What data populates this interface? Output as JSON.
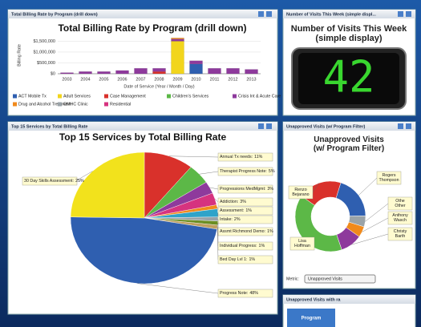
{
  "panels": [
    {
      "header": "Total Billing Rate by Program (drill down)"
    },
    {
      "header": "Number of Visits This Week (simple displ..."
    },
    {
      "header": "Top 15 Services by Total Billing Rate"
    },
    {
      "header": "Unapproved Visits (w/ Program Filter)"
    },
    {
      "header": "Unapproved Visits with ra"
    }
  ],
  "chart_data": [
    {
      "type": "bar",
      "title": "Total Billing Rate by Program (drill down)",
      "x_label": "Date of Service (Year / Month / Day)",
      "y_label": "Billing Rate",
      "categories": [
        "2003",
        "2004",
        "2005",
        "2006",
        "2007",
        "2008",
        "2009",
        "2010",
        "2011",
        "2012",
        "2013"
      ],
      "stacked": true,
      "series": [
        {
          "name": "ACT Mobile Tx",
          "color": "#2f5fb0",
          "values": [
            0,
            0,
            0,
            0,
            0,
            0,
            0,
            450000,
            0,
            0,
            0
          ]
        },
        {
          "name": "Adult Services",
          "color": "#f2d51c",
          "values": [
            0,
            0,
            0,
            0,
            0,
            0,
            1500000,
            0,
            0,
            0,
            0
          ]
        },
        {
          "name": "Case Management",
          "color": "#d9312b",
          "values": [
            0,
            0,
            0,
            0,
            0,
            100000,
            0,
            0,
            0,
            0,
            0
          ]
        },
        {
          "name": "Children's Services",
          "color": "#5cb847",
          "values": [
            0,
            0,
            0,
            0,
            0,
            0,
            0,
            0,
            0,
            0,
            0
          ]
        },
        {
          "name": "Crisis Int & Acute Care",
          "color": "#8e3a9c",
          "values": [
            50000,
            100000,
            100000,
            150000,
            250000,
            150000,
            100000,
            150000,
            250000,
            250000,
            200000
          ]
        },
        {
          "name": "Drug and Alcohol Treatment",
          "color": "#f08a1c",
          "values": [
            0,
            0,
            0,
            0,
            0,
            0,
            50000,
            0,
            0,
            0,
            0
          ]
        },
        {
          "name": "OMHC Clinic",
          "color": "#9aa3a8",
          "values": [
            0,
            0,
            0,
            0,
            0,
            0,
            0,
            0,
            0,
            0,
            0
          ]
        },
        {
          "name": "Residential",
          "color": "#d6337f",
          "values": [
            0,
            0,
            0,
            0,
            0,
            0,
            0,
            0,
            0,
            0,
            0
          ]
        }
      ],
      "ylim": [
        0,
        1700000
      ],
      "yticks": [
        {
          "value": 0,
          "label": "$0"
        },
        {
          "value": 500000,
          "label": "$500,000"
        },
        {
          "value": 1000000,
          "label": "$1,000,000"
        },
        {
          "value": 1500000,
          "label": "$1,500,000"
        }
      ],
      "grid": true
    },
    {
      "type": "display",
      "title": "Number of Visits This Week (simple display)",
      "value": 42,
      "color": "#39d62f"
    },
    {
      "type": "pie",
      "title": "Top 15 Services by Total Billing Rate",
      "categories": [
        "Annual Tx needs:",
        "Therapist Progress Note:",
        "Progressions MedMgmt:",
        "Addiction:",
        "Assessment:",
        "Intake:",
        "Assmt Richmond Demo:",
        "Individual Progress:",
        "Bed Day Lvl 1:",
        "Progress Note:",
        "30 Day Skills Assessment:"
      ],
      "values": [
        11,
        5,
        3,
        3,
        1,
        2,
        1,
        1,
        1,
        48,
        25
      ],
      "value_labels": [
        "11%",
        "5%",
        "3%",
        "3%",
        "1%",
        "2%",
        "1%",
        "1%",
        "1%",
        "48%",
        "25%"
      ],
      "colors": [
        "#d9312b",
        "#5cb847",
        "#8e3a9c",
        "#d6337f",
        "#f08a1c",
        "#2fa3c9",
        "#9aa3a8",
        "#6b8e23",
        "#c0a060",
        "#2f5fb0",
        "#f2e21c"
      ]
    },
    {
      "type": "donut",
      "title": "Unapproved Visits (w/ Program Filter)",
      "categories": [
        "Rogers Thompson",
        "Other",
        "Anthony Wasch",
        "Christy Barth",
        "Lisa Hoffman",
        "Renzo Bejarano"
      ],
      "values": [
        20,
        5,
        5,
        10,
        40,
        20
      ],
      "colors": [
        "#2f5fb0",
        "#9aa3a8",
        "#f08a1c",
        "#8e3a9c",
        "#5cb847",
        "#d9312b"
      ]
    }
  ],
  "metric": {
    "label": "Metric:",
    "selected": "Unapproved Visits"
  },
  "button": "Program"
}
